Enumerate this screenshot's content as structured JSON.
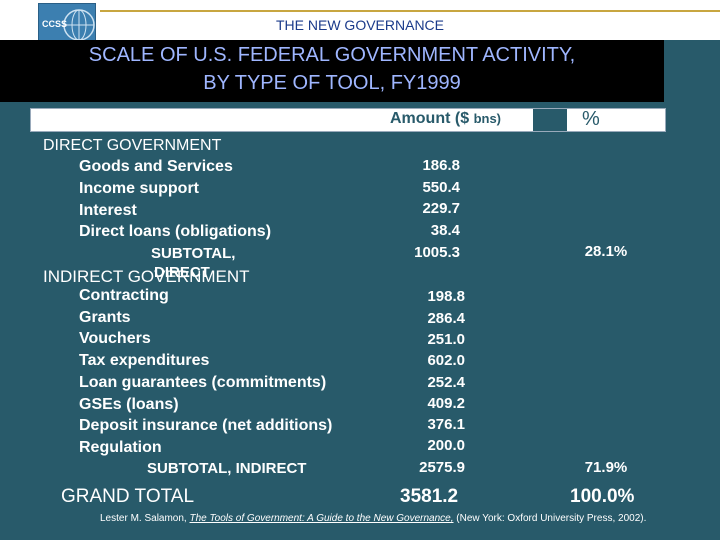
{
  "header": {
    "logo_text": "CCSS",
    "top_title": "THE NEW GOVERNANCE",
    "title_line1": "SCALE OF U.S. FEDERAL GOVERNMENT ACTIVITY,",
    "title_line2": "BY TYPE OF TOOL,  FY1999"
  },
  "table": {
    "amount_header": "Amount ($",
    "amount_header_unit": "bns)",
    "percent_header": "%",
    "direct": {
      "label": "DIRECT GOVERNMENT",
      "items": [
        {
          "name": "Goods and Services",
          "amount": "186.8"
        },
        {
          "name": "Income support",
          "amount": "550.4"
        },
        {
          "name": "Interest",
          "amount": "229.7"
        },
        {
          "name": "Direct loans (obligations)",
          "amount": "38.4"
        }
      ],
      "subtotal_label": "SUBTOTAL,",
      "subtotal_word": "DIRECT",
      "subtotal_amount": "1005.3",
      "subtotal_percent": "28.1%"
    },
    "indirect": {
      "label": "INDIRECT GOVERNMENT",
      "items": [
        {
          "name": "Contracting",
          "amount": "198.8"
        },
        {
          "name": "Grants",
          "amount": "286.4"
        },
        {
          "name": "Vouchers",
          "amount": "251.0"
        },
        {
          "name": "Tax expenditures",
          "amount": "602.0"
        },
        {
          "name": "Loan guarantees (commitments)",
          "amount": "252.4"
        },
        {
          "name": "GSEs (loans)",
          "amount": "409.2"
        },
        {
          "name": "Deposit insurance (net additions)",
          "amount": "376.1"
        },
        {
          "name": "Regulation",
          "amount": "200.0"
        }
      ],
      "subtotal_label": "SUBTOTAL, INDIRECT",
      "subtotal_amount": "2575.9",
      "subtotal_percent": "71.9%"
    },
    "grand_total": {
      "label": "GRAND TOTAL",
      "amount": "3581.2",
      "percent": "100.0%"
    }
  },
  "footer": {
    "author": "Lester M. Salamon, ",
    "book": "The Tools of Government: A Guide to the New Governance,",
    "publisher": " (New York: Oxford University Press, 2002)."
  }
}
